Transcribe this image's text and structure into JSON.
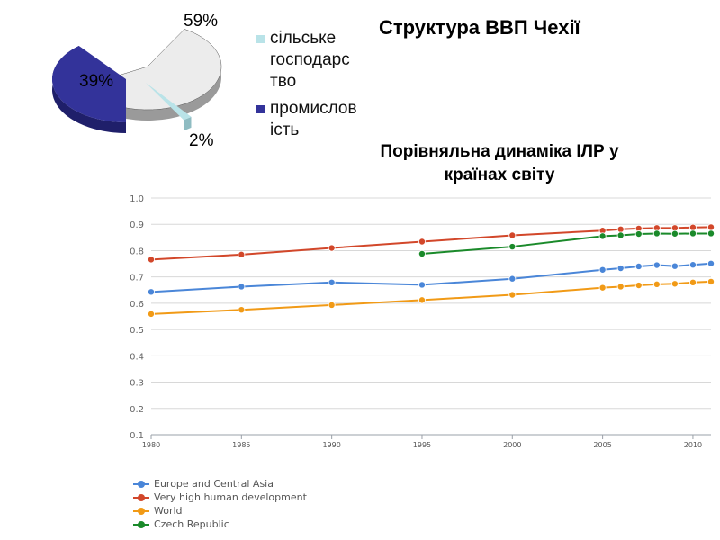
{
  "pie_chart": {
    "title": "Структура ВВП Чехії",
    "slices": [
      {
        "name": "сільське господарство",
        "value": 2,
        "label": "2%",
        "color": "#b9e3e8"
      },
      {
        "name": "промисловість",
        "value": 39,
        "label": "39%",
        "color": "#33339a"
      },
      {
        "name": "",
        "value": 59,
        "label": "59%",
        "color": "#ececec"
      }
    ],
    "legend": [
      {
        "text": "сільське господарс тво",
        "color": "#b9e3e8"
      },
      {
        "text": "промислов ість",
        "color": "#33339a"
      }
    ]
  },
  "line_chart": {
    "title": "Порівняльна динаміка ІЛР у країнах світу"
  },
  "chart_data": [
    {
      "type": "pie",
      "title": "Структура ВВП Чехії",
      "categories": [
        "сільське господарство",
        "промисловість",
        ""
      ],
      "values": [
        2,
        39,
        59
      ],
      "labels": [
        "2%",
        "39%",
        "59%"
      ],
      "legend_position": "right"
    },
    {
      "type": "line",
      "title": "Порівняльна динаміка ІЛР у країнах світу",
      "xlabel": "",
      "ylabel": "",
      "xlim": [
        1980,
        2011
      ],
      "ylim": [
        0.1,
        1.0
      ],
      "x_ticks": [
        "1980",
        "1985",
        "1990",
        "1995",
        "2000",
        "2005",
        "2010"
      ],
      "y_ticks": [
        "0.1",
        "0.2",
        "0.3",
        "0.4",
        "0.5",
        "0.6",
        "0.7",
        "0.8",
        "0.9",
        "1.0"
      ],
      "grid": true,
      "legend_position": "bottom-left",
      "series": [
        {
          "name": "Europe and Central Asia",
          "color": "#4a86d8",
          "x": [
            1980,
            1985,
            1990,
            1995,
            2000,
            2005,
            2006,
            2007,
            2008,
            2009,
            2010,
            2011
          ],
          "y": [
            0.643,
            0.663,
            0.679,
            0.67,
            0.693,
            0.727,
            0.733,
            0.74,
            0.745,
            0.741,
            0.746,
            0.751
          ]
        },
        {
          "name": "Very high human development",
          "color": "#d2472a",
          "x": [
            1980,
            1985,
            1990,
            1995,
            2000,
            2005,
            2006,
            2007,
            2008,
            2009,
            2010,
            2011
          ],
          "y": [
            0.766,
            0.785,
            0.81,
            0.834,
            0.858,
            0.876,
            0.881,
            0.884,
            0.886,
            0.886,
            0.888,
            0.889
          ]
        },
        {
          "name": "World",
          "color": "#f19a16",
          "x": [
            1980,
            1985,
            1990,
            1995,
            2000,
            2005,
            2006,
            2007,
            2008,
            2009,
            2010,
            2011
          ],
          "y": [
            0.559,
            0.575,
            0.593,
            0.612,
            0.632,
            0.659,
            0.663,
            0.668,
            0.672,
            0.674,
            0.679,
            0.682
          ]
        },
        {
          "name": "Czech Republic",
          "color": "#1a8a2a",
          "x": [
            1995,
            2000,
            2005,
            2006,
            2007,
            2008,
            2009,
            2010,
            2011
          ],
          "y": [
            0.788,
            0.815,
            0.855,
            0.858,
            0.863,
            0.865,
            0.864,
            0.865,
            0.865
          ]
        }
      ]
    }
  ]
}
